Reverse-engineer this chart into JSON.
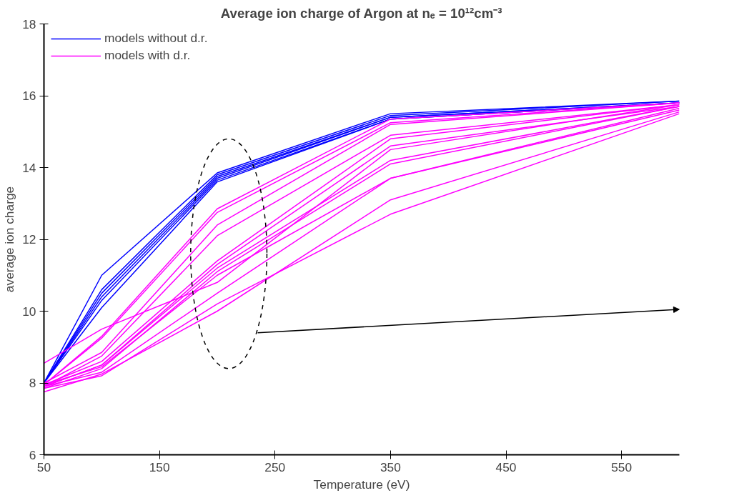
{
  "chart_data": {
    "type": "line",
    "title": "Average ion charge of Argon at nₑ = 10¹²cm⁻³",
    "xlabel": "Temperature (eV)",
    "ylabel": "average ion charge",
    "x": [
      50,
      100,
      200,
      350,
      600
    ],
    "xlim": [
      50,
      600
    ],
    "xticks": [
      50,
      150,
      250,
      350,
      450,
      550
    ],
    "ylim": [
      6,
      18
    ],
    "yticks": [
      6,
      8,
      10,
      12,
      14,
      16,
      18
    ],
    "grid": false,
    "legend": "top left",
    "marker": "none",
    "line_style": "solid",
    "series": [
      {
        "name": "models without d.r.",
        "color": "#0000ff",
        "values": [
          8.0,
          11.0,
          13.85,
          15.5,
          15.85
        ]
      },
      {
        "color": "#0000ff",
        "values": [
          8.0,
          10.6,
          13.8,
          15.45,
          15.85
        ]
      },
      {
        "color": "#0000ff",
        "values": [
          8.0,
          10.5,
          13.75,
          15.4,
          15.8
        ]
      },
      {
        "color": "#0000ff",
        "values": [
          8.0,
          10.4,
          13.7,
          15.4,
          15.8
        ]
      },
      {
        "color": "#0000ff",
        "values": [
          8.0,
          10.3,
          13.65,
          15.35,
          15.8
        ]
      },
      {
        "color": "#0000ff",
        "values": [
          8.0,
          10.1,
          13.6,
          15.35,
          15.8
        ]
      },
      {
        "name": "models with d.r.",
        "color": "#ff00ff",
        "values": [
          8.55,
          9.5,
          10.8,
          14.5,
          15.75
        ]
      },
      {
        "color": "#ff00ff",
        "values": [
          7.95,
          9.3,
          12.85,
          15.35,
          15.8
        ]
      },
      {
        "color": "#ff00ff",
        "values": [
          7.95,
          9.25,
          12.75,
          15.25,
          15.8
        ]
      },
      {
        "color": "#ff00ff",
        "values": [
          8.0,
          8.85,
          12.4,
          15.2,
          15.8
        ]
      },
      {
        "color": "#ff00ff",
        "values": [
          7.9,
          8.75,
          12.1,
          14.9,
          15.75
        ]
      },
      {
        "color": "#ff00ff",
        "values": [
          7.95,
          8.6,
          11.4,
          14.8,
          15.75
        ]
      },
      {
        "color": "#ff00ff",
        "values": [
          7.9,
          8.5,
          11.3,
          14.6,
          15.7
        ]
      },
      {
        "color": "#ff00ff",
        "values": [
          7.9,
          8.5,
          11.2,
          14.2,
          15.7
        ]
      },
      {
        "color": "#ff00ff",
        "values": [
          7.85,
          8.4,
          11.1,
          14.1,
          15.7
        ]
      },
      {
        "color": "#ff00ff",
        "values": [
          7.95,
          8.45,
          11.0,
          13.7,
          15.65
        ]
      },
      {
        "color": "#ff00ff",
        "values": [
          7.9,
          8.3,
          10.5,
          13.7,
          15.6
        ]
      },
      {
        "color": "#ff00ff",
        "values": [
          7.75,
          8.25,
          10.0,
          13.1,
          15.55
        ]
      },
      {
        "color": "#ff00ff",
        "values": [
          7.85,
          8.2,
          10.2,
          12.7,
          15.5
        ]
      }
    ]
  }
}
